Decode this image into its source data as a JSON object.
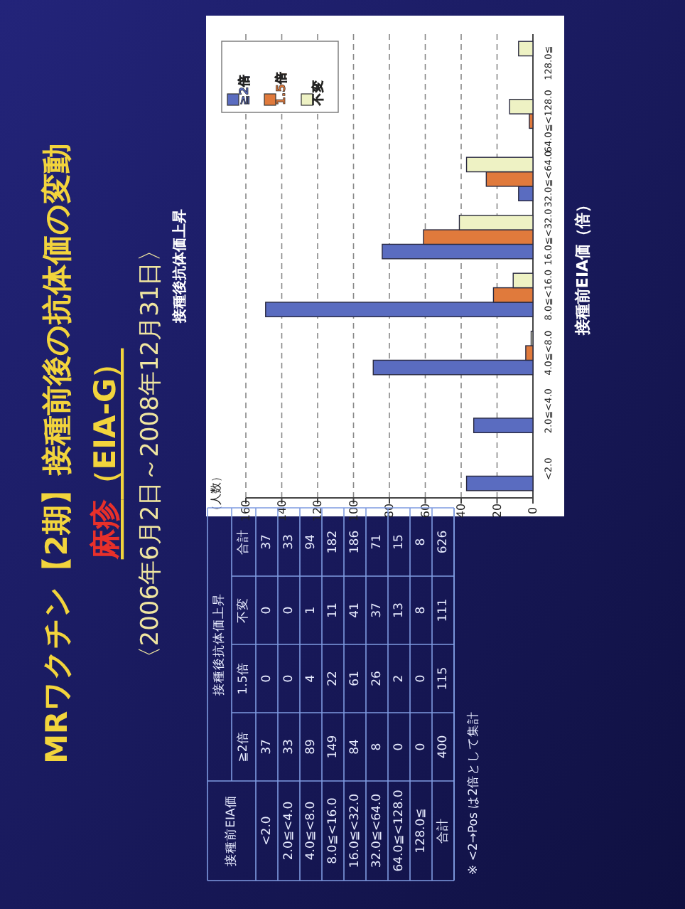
{
  "chart_data": {
    "type": "bar",
    "orientation": "horizontal",
    "title": "MRワクチン【2期】接種前後の抗体価の変動",
    "subtitle": "麻疹（EIA-G）",
    "ylabel": "接種前EIA価（倍）",
    "legend_title": "接種後抗体価上昇",
    "categories": [
      "128.0≦",
      "64.0≦<128.0",
      "32.0≦<64.0",
      "16.0≦<32.0",
      "8.0≦<16.0",
      "4.0≦<8.0",
      "2.0≦<4.0",
      "<2.0"
    ],
    "series": [
      {
        "name": "≧2倍",
        "color": "#5a6cc0",
        "values": [
          0,
          0,
          8,
          84,
          149,
          89,
          33,
          37
        ]
      },
      {
        "name": "1.5倍",
        "color": "#e07a3c",
        "values": [
          0,
          2,
          26,
          61,
          22,
          4,
          0,
          0
        ]
      },
      {
        "name": "不変",
        "color": "#eef2c4",
        "values": [
          8,
          13,
          37,
          41,
          11,
          1,
          0,
          0
        ]
      }
    ],
    "annotations": [
      "〈2006年6月2日～2008年12月31日〉",
      "（人数）",
      "接種前EIA価",
      "合計",
      "合計",
      "※ <2→Pos は2倍として集計",
      "37",
      "0",
      "0",
      "37",
      "33",
      "0",
      "0",
      "33",
      "89",
      "4",
      "1",
      "94",
      "149",
      "22",
      "11",
      "182",
      "84",
      "61",
      "41",
      "186",
      "8",
      "26",
      "37",
      "71",
      "0",
      "2",
      "13",
      "15",
      "0",
      "0",
      "8",
      "8",
      "400",
      "115",
      "111",
      "626"
    ],
    "xlim": [
      160,
      0
    ],
    "xticks": [
      0,
      20,
      40,
      60,
      80,
      100,
      120,
      140,
      160
    ],
    "grid": "x",
    "legend": "top left"
  }
}
